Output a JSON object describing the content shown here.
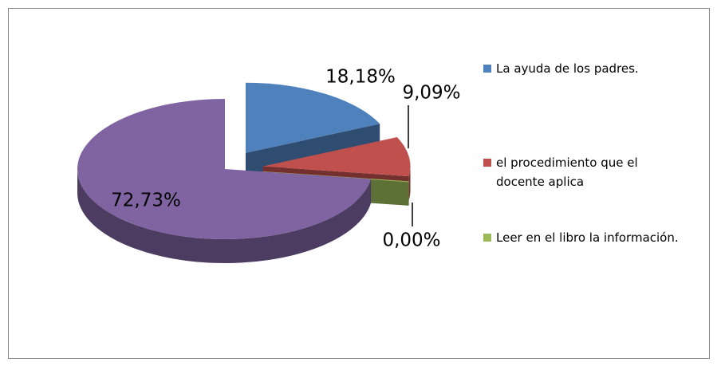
{
  "chart_data": {
    "type": "pie",
    "categories": [
      "La ayuda de los padres.",
      "el procedimiento que el docente aplica",
      "Leer en el libro la información.",
      null
    ],
    "values": [
      18.18,
      9.09,
      0.0,
      72.73
    ],
    "value_labels": [
      "18,18%",
      "9,09%",
      "0,00%",
      "72,73%"
    ],
    "colors": [
      "#4f81bd",
      "#c0504d",
      "#9bbb59",
      "#8064a2"
    ],
    "legend": "right"
  }
}
